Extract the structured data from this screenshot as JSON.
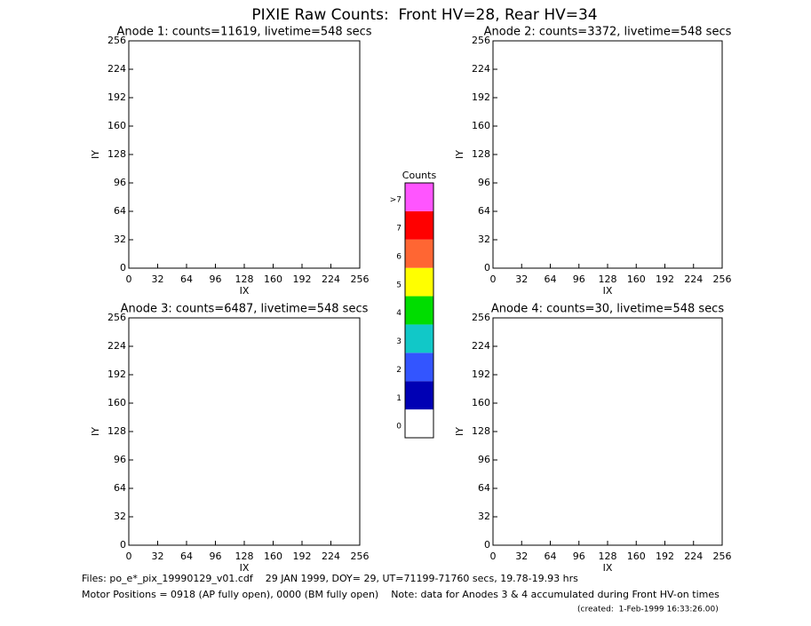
{
  "title": "PIXIE Raw Counts:  Front HV=28, Rear HV=34",
  "chart_data": [
    {
      "type": "heatmap",
      "title": "Anode 1: counts=11619, livetime=548 secs",
      "x_label": "IX",
      "y_label": "IY",
      "xlim": [
        0,
        256
      ],
      "ylim": [
        0,
        256
      ],
      "xticks": [
        0,
        32,
        64,
        96,
        128,
        160,
        192,
        224,
        256
      ],
      "yticks": [
        0,
        32,
        64,
        96,
        128,
        160,
        192,
        224,
        256
      ]
    },
    {
      "type": "heatmap",
      "title": "Anode 2: counts=3372, livetime=548 secs",
      "x_label": "IX",
      "y_label": "IY",
      "xlim": [
        0,
        256
      ],
      "ylim": [
        0,
        256
      ],
      "xticks": [
        0,
        32,
        64,
        96,
        128,
        160,
        192,
        224,
        256
      ],
      "yticks": [
        0,
        32,
        64,
        96,
        128,
        160,
        192,
        224,
        256
      ]
    },
    {
      "type": "heatmap",
      "title": "Anode 3: counts=6487, livetime=548 secs",
      "x_label": "IX",
      "y_label": "IY",
      "xlim": [
        0,
        256
      ],
      "ylim": [
        0,
        256
      ],
      "xticks": [
        0,
        32,
        64,
        96,
        128,
        160,
        192,
        224,
        256
      ],
      "yticks": [
        0,
        32,
        64,
        96,
        128,
        160,
        192,
        224,
        256
      ]
    },
    {
      "type": "heatmap",
      "title": "Anode 4: counts=30, livetime=548 secs",
      "x_label": "IX",
      "y_label": "IY",
      "xlim": [
        0,
        256
      ],
      "ylim": [
        0,
        256
      ],
      "xticks": [
        0,
        32,
        64,
        96,
        128,
        160,
        192,
        224,
        256
      ],
      "yticks": [
        0,
        32,
        64,
        96,
        128,
        160,
        192,
        224,
        256
      ]
    }
  ],
  "colorbar": {
    "title": "Counts",
    "categories": [
      "0",
      "1",
      "2",
      "3",
      "4",
      "5",
      "6",
      "7",
      ">7"
    ],
    "colors": [
      "#ffffff",
      "#0000b4",
      "#3355ff",
      "#11c8c8",
      "#00dd00",
      "#ffff00",
      "#ff6633",
      "#ff0000",
      "#ff55ff"
    ]
  },
  "footer": {
    "files": "Files: po_e*_pix_19990129_v01.cdf    29 JAN 1999, DOY= 29, UT=71199-71760 secs, 19.78-19.93 hrs",
    "motor": "Motor Positions = 0918 (AP fully open), 0000 (BM fully open)    Note: data for Anodes 3 & 4 accumulated during Front HV-on times",
    "created": "(created:  1-Feb-1999 16:33:26.00)"
  }
}
